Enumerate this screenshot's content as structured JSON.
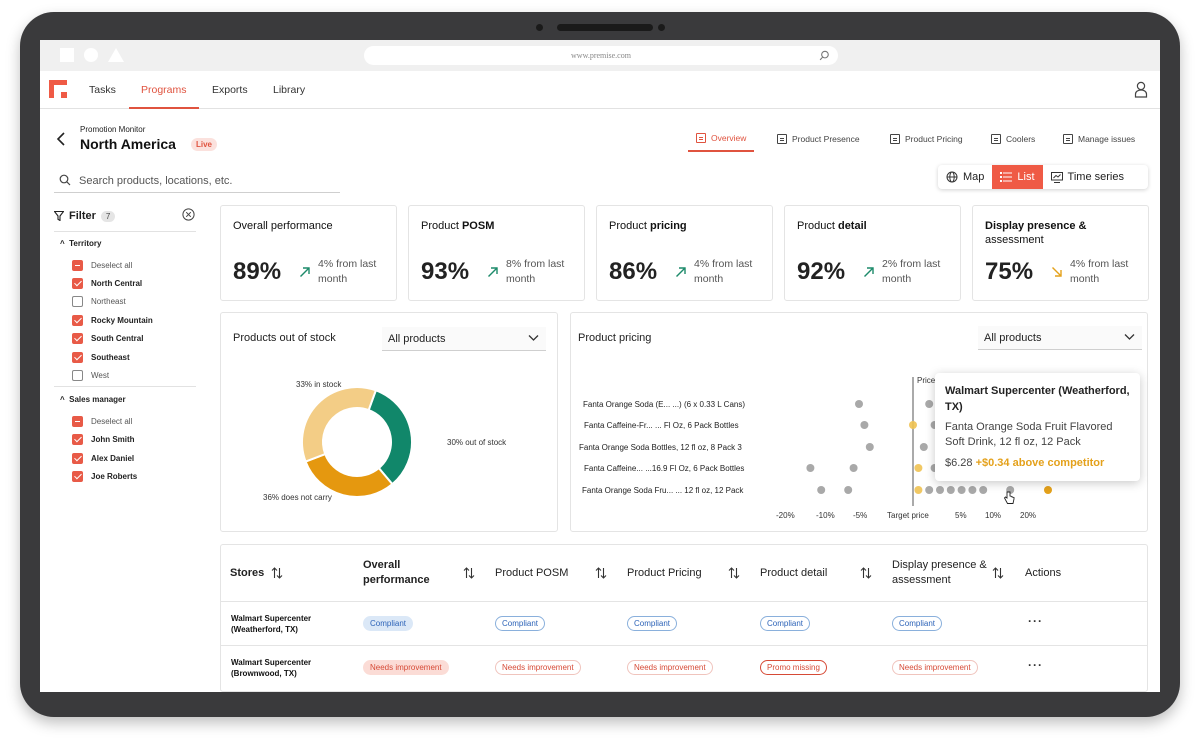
{
  "browser": {
    "url": "www.premise.com"
  },
  "nav": {
    "items": [
      "Tasks",
      "Programs",
      "Exports",
      "Library"
    ],
    "active": "Programs"
  },
  "header": {
    "subtitle": "Promotion Monitor",
    "title": "North America",
    "badge": "Live"
  },
  "page_tabs": [
    "Overview",
    "Product Presence",
    "Product Pricing",
    "Coolers",
    "Manage issues"
  ],
  "search": {
    "placeholder": "Search products, locations, etc."
  },
  "view_toggle": {
    "items": [
      "Map",
      "List",
      "Time series"
    ],
    "active": "List"
  },
  "filter": {
    "label": "Filter",
    "count": "7",
    "groups": [
      {
        "label": "Territory",
        "options": [
          {
            "label": "Deselect all",
            "state": "partial"
          },
          {
            "label": "North Central",
            "state": "checked"
          },
          {
            "label": "Northeast",
            "state": "unchecked"
          },
          {
            "label": "Rocky Mountain",
            "state": "checked"
          },
          {
            "label": "South Central",
            "state": "checked"
          },
          {
            "label": "Southeast",
            "state": "checked"
          },
          {
            "label": "West",
            "state": "unchecked"
          }
        ]
      },
      {
        "label": "Sales manager",
        "options": [
          {
            "label": "Deselect all",
            "state": "partial"
          },
          {
            "label": "John Smith",
            "state": "checked"
          },
          {
            "label": "Alex Daniel",
            "state": "checked"
          },
          {
            "label": "Joe Roberts",
            "state": "checked"
          }
        ]
      }
    ]
  },
  "kpis": [
    {
      "title_plain": "Overall performance",
      "title_bold": "",
      "value": "89%",
      "delta": "4% from last month",
      "trend": "up"
    },
    {
      "title_plain": "Product ",
      "title_bold": "POSM",
      "value": "93%",
      "delta": "8% from last month",
      "trend": "up"
    },
    {
      "title_plain": "Product ",
      "title_bold": "pricing",
      "value": "86%",
      "delta": "4% from last month",
      "trend": "up"
    },
    {
      "title_plain": "Product ",
      "title_bold": "detail",
      "value": "92%",
      "delta": "2% from last month",
      "trend": "up"
    },
    {
      "title_plain": "",
      "title_bold": "Display presence &",
      "title_line2": "assessment",
      "value": "75%",
      "delta": "4% from last month",
      "trend": "down"
    }
  ],
  "colors": {
    "accent": "#ef5a45",
    "up": "#1c8a6a",
    "down": "#e4a11b",
    "green": "#11876a",
    "orange": "#e5980f",
    "sand": "#f3cd86"
  },
  "stock_panel": {
    "title": "Products out of stock",
    "dropdown": "All products",
    "chart_data": {
      "type": "pie",
      "donut": true,
      "slices": [
        {
          "label": "33% in stock",
          "value": 33,
          "color": "#11876a"
        },
        {
          "label": "30% out of stock",
          "value": 30,
          "color": "#e5980f"
        },
        {
          "label": "36% does not carry",
          "value": 36,
          "color": "#f3cd86"
        }
      ]
    }
  },
  "pricing_panel": {
    "title": "Product pricing",
    "dropdown": "All products",
    "chart_data": {
      "type": "scatter",
      "categories": [
        "Fanta Orange Soda (E... ...) (6 x 0.33 L Cans)",
        "Fanta Caffeine-Fr... ... Fl Oz, 6 Pack Bottles",
        "Fanta Orange Soda Bottles, 12 fl oz, 8 Pack 3",
        "Fanta Caffeine... ...16.9 Fl Oz, 6 Pack Bottles",
        "Fanta Orange Soda Fru... ... 12 fl oz, 12 Pack"
      ],
      "x_ticks": [
        "-20%",
        "-10%",
        "-5%",
        "Target price",
        "5%",
        "10%",
        "20%"
      ],
      "target_label": "Price",
      "points": [
        [
          -10,
          3,
          7,
          9,
          11,
          13,
          16,
          20
        ],
        [
          -9,
          0,
          4,
          7,
          9,
          11,
          14,
          17
        ],
        [
          -8,
          2,
          6,
          9,
          12,
          14,
          18
        ],
        [
          -19,
          -11,
          1,
          4,
          8,
          10,
          13,
          15
        ],
        [
          -17,
          -12,
          1,
          3,
          5,
          7,
          9,
          11,
          13,
          18
        ]
      ],
      "highlight": {
        "category_index": 4,
        "x": 25
      }
    },
    "tooltip": {
      "store": "Walmart Supercenter (Weatherford, TX)",
      "product": "Fanta Orange Soda Fruit Flavored Soft Drink, 12 fl oz, 12 Pack",
      "price": "$6.28",
      "above": "+$0.34 above competitor"
    }
  },
  "table": {
    "headers": [
      "Stores",
      "Overall performance",
      "Product POSM",
      "Product Pricing",
      "Product detail",
      "Display presence & assessment",
      "Actions"
    ],
    "rows": [
      {
        "store_line1": "Walmart Supercenter",
        "store_line2": "(Weatherford, TX)",
        "cells": [
          "Compliant",
          "Compliant",
          "Compliant",
          "Compliant",
          "Compliant"
        ],
        "actions": "···"
      },
      {
        "store_line1": "Walmart Supercenter",
        "store_line2": "(Brownwood, TX)",
        "cells": [
          "Needs improvement",
          "Needs improvement",
          "Needs improvement",
          "Promo missing",
          "Needs improvement"
        ],
        "actions": "···"
      }
    ]
  }
}
